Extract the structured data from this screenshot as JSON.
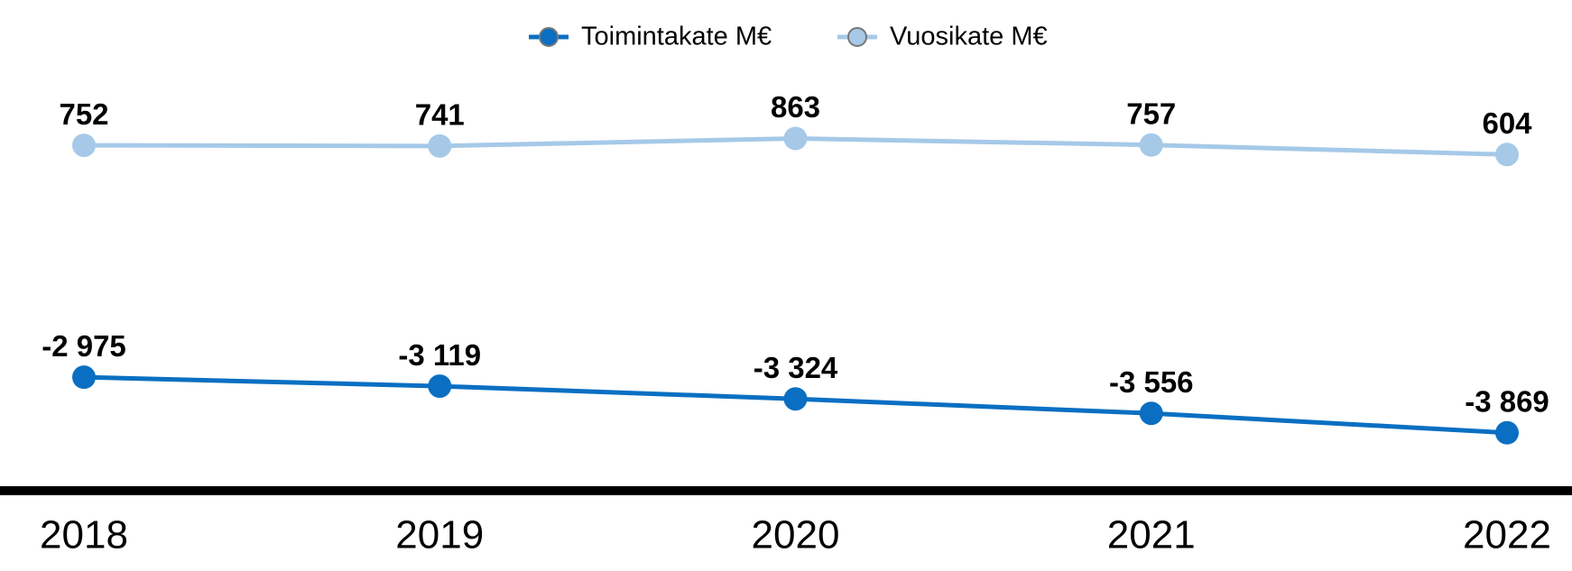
{
  "chart_data": {
    "type": "line",
    "categories": [
      "2018",
      "2019",
      "2020",
      "2021",
      "2022"
    ],
    "series": [
      {
        "name": "Toimintakate M€",
        "color": "#0a6fc2",
        "values": [
          -2975,
          -3119,
          -3324,
          -3556,
          -3869
        ],
        "value_labels": [
          "-2 975",
          "-3 119",
          "-3 324",
          "-3 556",
          "-3 869"
        ]
      },
      {
        "name": "Vuosikate M€",
        "color": "#a6c9e8",
        "values": [
          752,
          741,
          863,
          757,
          604
        ]
      }
    ],
    "ylim": [
      -4800,
      1000
    ],
    "legend": "top"
  }
}
